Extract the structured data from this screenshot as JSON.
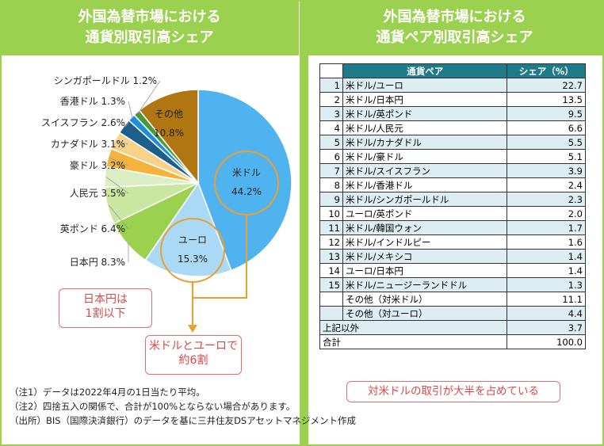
{
  "left_title": [
    "外国為替市場における",
    "通貨別取引高シェア"
  ],
  "right_title": [
    "外国為替市場における",
    "通貨ペア別取引高シェア"
  ],
  "chart_data": [
    {
      "type": "pie",
      "categories": [
        "米ドル",
        "ユーロ",
        "日本円",
        "英ポンド",
        "人民元",
        "豪ドル",
        "カナダドル",
        "スイスフラン",
        "香港ドル",
        "シンガポールドル",
        "その他"
      ],
      "values": [
        44.2,
        15.3,
        8.3,
        6.4,
        3.5,
        3.2,
        3.1,
        2.6,
        1.3,
        1.2,
        10.8
      ],
      "value_labels": [
        "44.2%",
        "15.3%",
        "8.3%",
        "6.4%",
        "3.5%",
        "3.2%",
        "3.1%",
        "2.6%",
        "1.3%",
        "1.2%",
        "10.8%"
      ],
      "colors": [
        "#4fb3f0",
        "#a9d9f5",
        "#9bd14f",
        "#c9e7a0",
        "#daf0c4",
        "#f5b33c",
        "#f9d28a",
        "#1c5f8c",
        "#1e8fd6",
        "#4a9a3a",
        "#77c25a",
        "#b07612"
      ],
      "slice_colors": [
        "#4fb3f0",
        "#a9d9f5",
        "#9bd14f",
        "#c9e7a0",
        "#daf0c4",
        "#f5b33c",
        "#f9d28a",
        "#1c5f8c",
        "#1e8fd6",
        "#4a9a3a",
        "#b07612"
      ]
    },
    {
      "type": "table",
      "headers": [
        "通貨ペア",
        "シェア（%）"
      ],
      "rows": [
        [
          "1",
          "米ドル/ユーロ",
          "22.7"
        ],
        [
          "2",
          "米ドル/日本円",
          "13.5"
        ],
        [
          "3",
          "米ドル/英ポンド",
          "9.5"
        ],
        [
          "4",
          "米ドル/人民元",
          "6.6"
        ],
        [
          "5",
          "米ドル/カナダドル",
          "5.5"
        ],
        [
          "6",
          "米ドル/豪ドル",
          "5.1"
        ],
        [
          "7",
          "米ドル/スイスフラン",
          "3.9"
        ],
        [
          "8",
          "米ドル/香港ドル",
          "2.4"
        ],
        [
          "9",
          "米ドル/シンガポールドル",
          "2.3"
        ],
        [
          "10",
          "ユーロ/英ポンド",
          "2.0"
        ],
        [
          "11",
          "米ドル/韓国ウォン",
          "1.7"
        ],
        [
          "12",
          "米ドル/インドルピー",
          "1.6"
        ],
        [
          "13",
          "米ドル/メキシコ",
          "1.4"
        ],
        [
          "14",
          "ユーロ/日本円",
          "1.4"
        ],
        [
          "15",
          "米ドル/ニュージーランドドル",
          "1.3"
        ],
        [
          "",
          "その他（対米ドル）",
          "11.1"
        ],
        [
          "",
          "その他（対ユーロ）",
          "4.4"
        ]
      ],
      "others_label": "上記以外",
      "others_value": "3.7",
      "total_label": "合計",
      "total_value": "100.0"
    }
  ],
  "callouts": {
    "yen": [
      "日本円は",
      "1割以下"
    ],
    "usd_eur": [
      "米ドルとユーロで",
      "約6割"
    ],
    "right": "対米ドルの取引が大半を占めている"
  },
  "footnotes": [
    "（注1）データは2022年4月の1日当たり平均。",
    "（注2）四捨五入の関係で、合計が100%とならない場合があります。",
    "（出所）BIS（国際決済銀行）のデータを基に三井住友DSアセットマネジメント作成"
  ]
}
